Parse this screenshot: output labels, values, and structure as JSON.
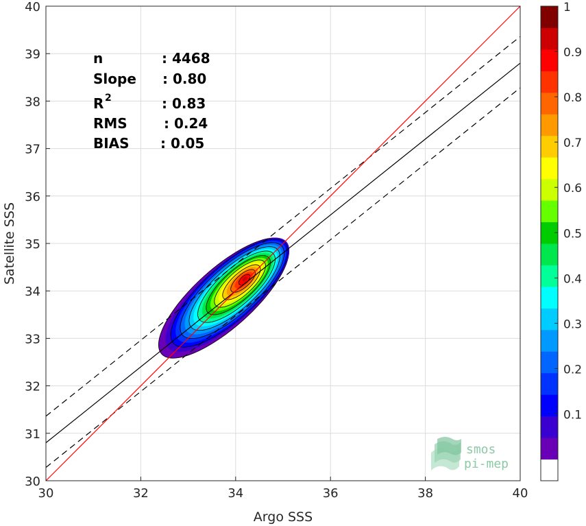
{
  "chart_data": {
    "type": "density-scatter",
    "xlabel": "Argo SSS",
    "ylabel": "Satellite SSS",
    "xlim": [
      30,
      40
    ],
    "ylim": [
      30,
      40
    ],
    "xticks": [
      "30",
      "32",
      "34",
      "36",
      "38",
      "40"
    ],
    "yticks": [
      "30",
      "31",
      "32",
      "33",
      "34",
      "35",
      "36",
      "37",
      "38",
      "39",
      "40"
    ],
    "grid": true,
    "stats": [
      {
        "label": "n",
        "value": ": 4468"
      },
      {
        "label": "Slope",
        "value": ": 0.80"
      },
      {
        "label": "R",
        "sup": "2",
        "value": ": 0.83"
      },
      {
        "label": "RMS",
        "value": ": 0.24"
      },
      {
        "label": "BIAS",
        "value": ": 0.05"
      }
    ],
    "reference_line": {
      "name": "1:1",
      "color": "#ff0000",
      "points": [
        [
          30,
          30
        ],
        [
          40,
          40
        ]
      ]
    },
    "fit_line": {
      "color": "#000000",
      "points": [
        [
          30,
          30.8
        ],
        [
          40,
          38.8
        ]
      ]
    },
    "confidence_lines": [
      {
        "style": "dashed",
        "points": [
          [
            30,
            31.36
          ],
          [
            40,
            39.36
          ]
        ]
      },
      {
        "style": "dashed",
        "points": [
          [
            30,
            30.28
          ],
          [
            40,
            38.28
          ]
        ]
      }
    ],
    "density": {
      "peak_x": 34.2,
      "peak_y": 34.25,
      "levels": [
        0.05,
        0.1,
        0.15,
        0.2,
        0.25,
        0.3,
        0.35,
        0.4,
        0.45,
        0.5,
        0.55,
        0.6,
        0.65,
        0.7,
        0.75,
        0.8,
        0.85,
        0.9,
        0.95,
        1.0
      ]
    },
    "colorbar": {
      "range": [
        0,
        1
      ],
      "ticks": [
        "0.1",
        "0.2",
        "0.3",
        "0.4",
        "0.5",
        "0.6",
        "0.7",
        "0.8",
        "0.9",
        "1"
      ],
      "colors": [
        "#ffffff",
        "#6a00b5",
        "#3a00d0",
        "#0000ff",
        "#0033ff",
        "#0066ff",
        "#0099ff",
        "#00ccff",
        "#00ffff",
        "#00ff99",
        "#00e64d",
        "#00cc00",
        "#66ff00",
        "#ccff00",
        "#ffff00",
        "#ffcc00",
        "#ff9900",
        "#ff6600",
        "#ff3300",
        "#ff0000",
        "#cc0000",
        "#800000"
      ]
    }
  },
  "logo": {
    "line1": "smos",
    "line2": "pi-mep"
  }
}
